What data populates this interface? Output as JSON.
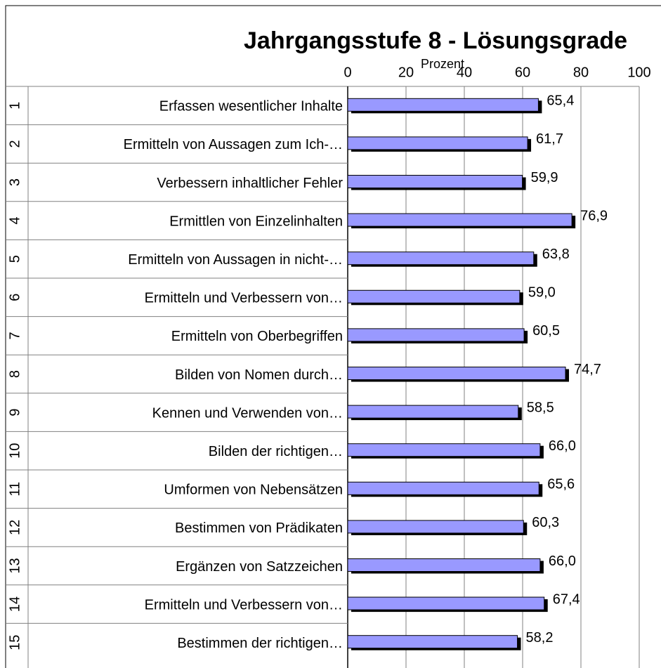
{
  "chart_data": {
    "type": "bar",
    "orientation": "horizontal",
    "title": "Jahrgangsstufe 8 - Lösungsgrade",
    "x_axis_label": "Prozent",
    "row_numbers": [
      "1",
      "2",
      "3",
      "4",
      "5",
      "6",
      "7",
      "8",
      "9",
      "10",
      "11",
      "12",
      "13",
      "14",
      "15"
    ],
    "categories": [
      "Erfassen wesentlicher Inhalte",
      "Ermitteln von Aussagen zum Ich-…",
      "Verbessern inhaltlicher Fehler",
      "Ermittlen von Einzelinhalten",
      "Ermitteln von Aussagen in nicht-…",
      "Ermitteln und Verbessern von…",
      "Ermitteln von Oberbegriffen",
      "Bilden von Nomen durch…",
      "Kennen und Verwenden von…",
      "Bilden der richtigen…",
      "Umformen von Nebensätzen",
      "Bestimmen von Prädikaten",
      "Ergänzen von Satzzeichen",
      "Ermitteln und Verbessern von…",
      "Bestimmen der richtigen…"
    ],
    "values": [
      65.4,
      61.7,
      59.9,
      76.9,
      63.8,
      59.0,
      60.5,
      74.7,
      58.5,
      66.0,
      65.6,
      60.3,
      66.0,
      67.4,
      58.2
    ],
    "value_labels": [
      "65,4",
      "61,7",
      "59,9",
      "76,9",
      "63,8",
      "59,0",
      "60,5",
      "74,7",
      "58,5",
      "66,0",
      "65,6",
      "60,3",
      "66,0",
      "67,4",
      "58,2"
    ],
    "color": "#9999ff",
    "shadow_color": "#000000",
    "xlim": [
      0,
      100
    ],
    "xticks": [
      0,
      20,
      40,
      60,
      80,
      100
    ],
    "grid": true
  }
}
